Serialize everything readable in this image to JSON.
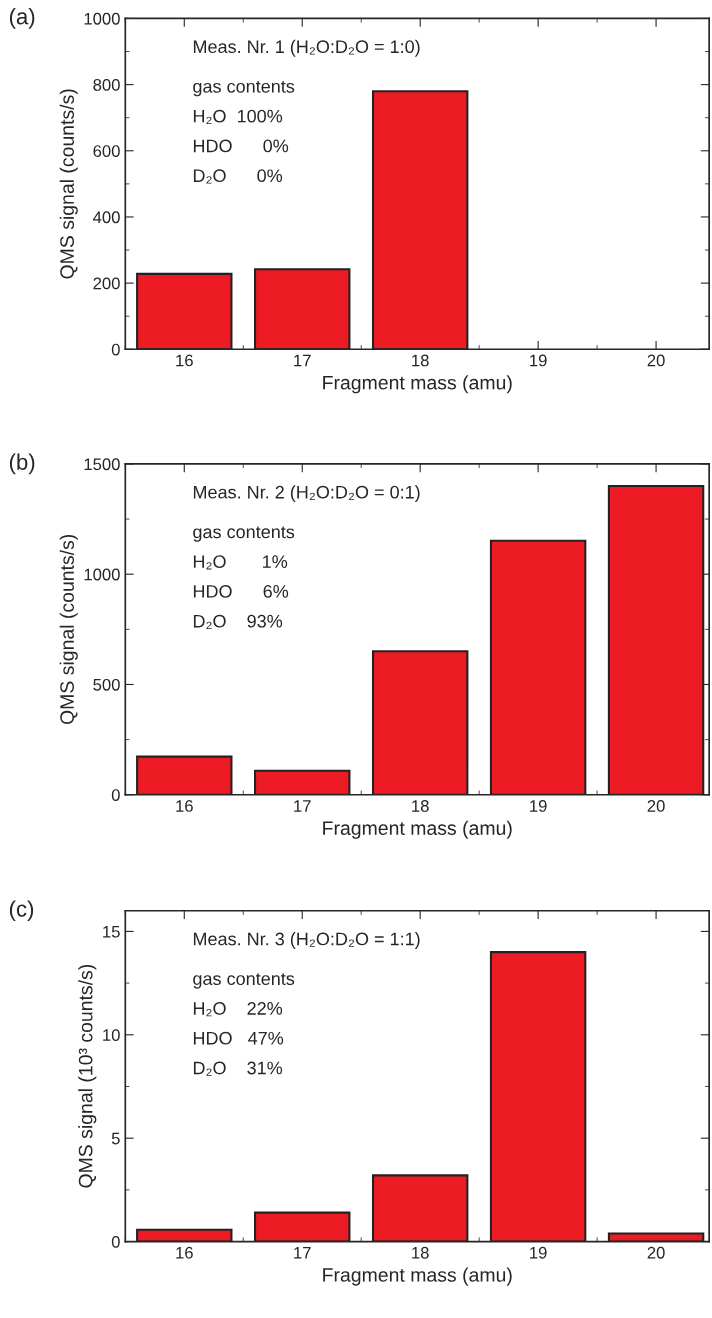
{
  "chart_data": [
    {
      "type": "bar",
      "title": "(a)",
      "xlabel": "Fragment mass (amu)",
      "ylabel": "QMS signal (counts/s)",
      "x": [
        16,
        17,
        18
      ],
      "series": [
        {
          "color": "#ed1c24",
          "values": [
            228,
            242,
            780
          ]
        }
      ],
      "xlim": [
        15.5,
        20.45
      ],
      "xticks": [
        16,
        17,
        18,
        19,
        20
      ],
      "ylim": [
        0,
        1000
      ],
      "yticks": [
        0,
        200,
        400,
        600,
        800,
        1000
      ],
      "annotations": [
        "Meas. Nr. 1 (H₂O:D₂O = 1:0)",
        "gas contents",
        "H₂O  100%",
        "HDO      0%",
        "D₂O      0%"
      ]
    },
    {
      "type": "bar",
      "title": "(b)",
      "xlabel": "Fragment mass (amu)",
      "ylabel": "QMS signal (counts/s)",
      "x": [
        16,
        17,
        18,
        19,
        20
      ],
      "series": [
        {
          "color": "#ed1c24",
          "values": [
            173,
            109,
            651,
            1152,
            1400
          ]
        }
      ],
      "xlim": [
        15.5,
        20.45
      ],
      "xticks": [
        16,
        17,
        18,
        19,
        20
      ],
      "ylim": [
        0,
        1500
      ],
      "yticks": [
        0,
        500,
        1000,
        1500
      ],
      "annotations": [
        "Meas. Nr. 2 (H₂O:D₂O = 0:1)",
        "gas contents",
        "H₂O       1%",
        "HDO      6%",
        "D₂O    93%"
      ]
    },
    {
      "type": "bar",
      "title": "(c)",
      "xlabel": "Fragment mass (amu)",
      "ylabel": "QMS signal (10³ counts/s)",
      "x": [
        16,
        17,
        18,
        19,
        20
      ],
      "series": [
        {
          "color": "#ed1c24",
          "values": [
            0.57,
            1.4,
            3.2,
            14.0,
            0.39
          ]
        }
      ],
      "xlim": [
        15.5,
        20.45
      ],
      "xticks": [
        16,
        17,
        18,
        19,
        20
      ],
      "ylim": [
        0,
        16
      ],
      "yticks": [
        0,
        5,
        10,
        15
      ],
      "annotations": [
        "Meas. Nr. 3 (H₂O:D₂O = 1:1)",
        "gas contents",
        "H₂O    22%",
        "HDO   47%",
        "D₂O    31%"
      ]
    }
  ]
}
